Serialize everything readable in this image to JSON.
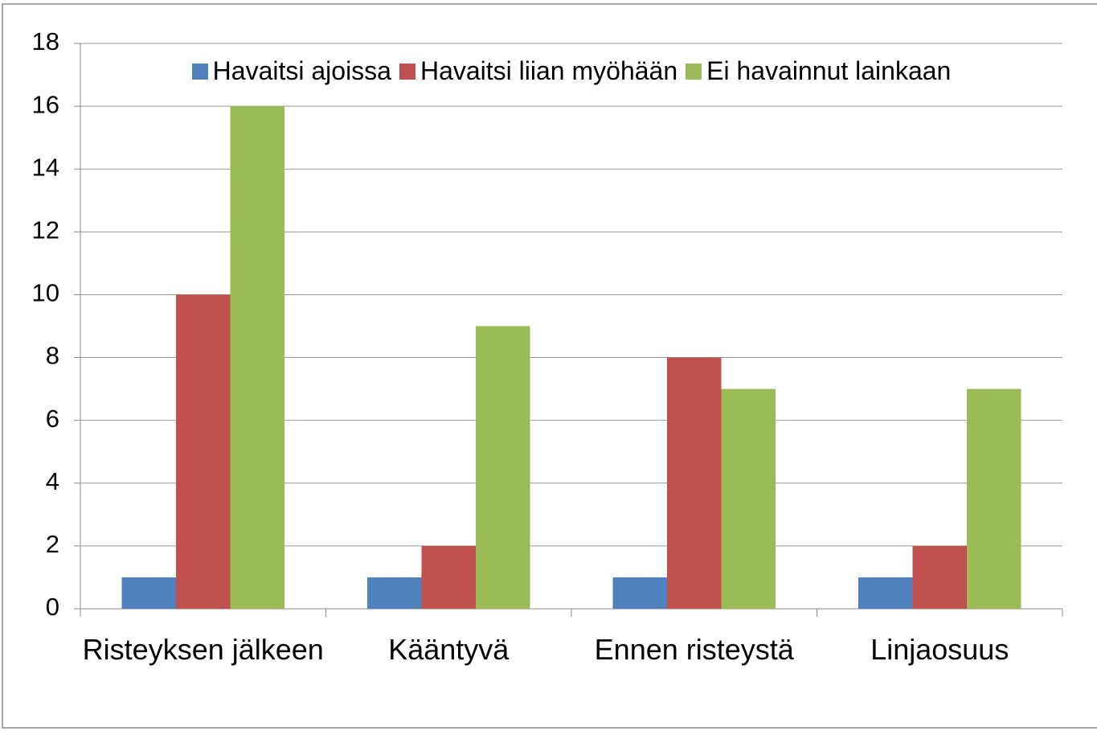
{
  "chart_data": {
    "type": "bar",
    "categories": [
      "Risteyksen jälkeen",
      "Kääntyvä",
      "Ennen risteystä",
      "Linjaosuus"
    ],
    "series": [
      {
        "name": "Havaitsi ajoissa",
        "color": "#4f81bd",
        "values": [
          1,
          1,
          1,
          1
        ]
      },
      {
        "name": "Havaitsi liian myöhään",
        "color": "#c0504d",
        "values": [
          10,
          2,
          8,
          2
        ]
      },
      {
        "name": "Ei havainnut lainkaan",
        "color": "#9bbb59",
        "values": [
          16,
          9,
          7,
          7
        ]
      }
    ],
    "ylim": [
      0,
      18
    ],
    "yticks": [
      0,
      2,
      4,
      6,
      8,
      10,
      12,
      14,
      16,
      18
    ],
    "grid": true,
    "legend": "top"
  }
}
